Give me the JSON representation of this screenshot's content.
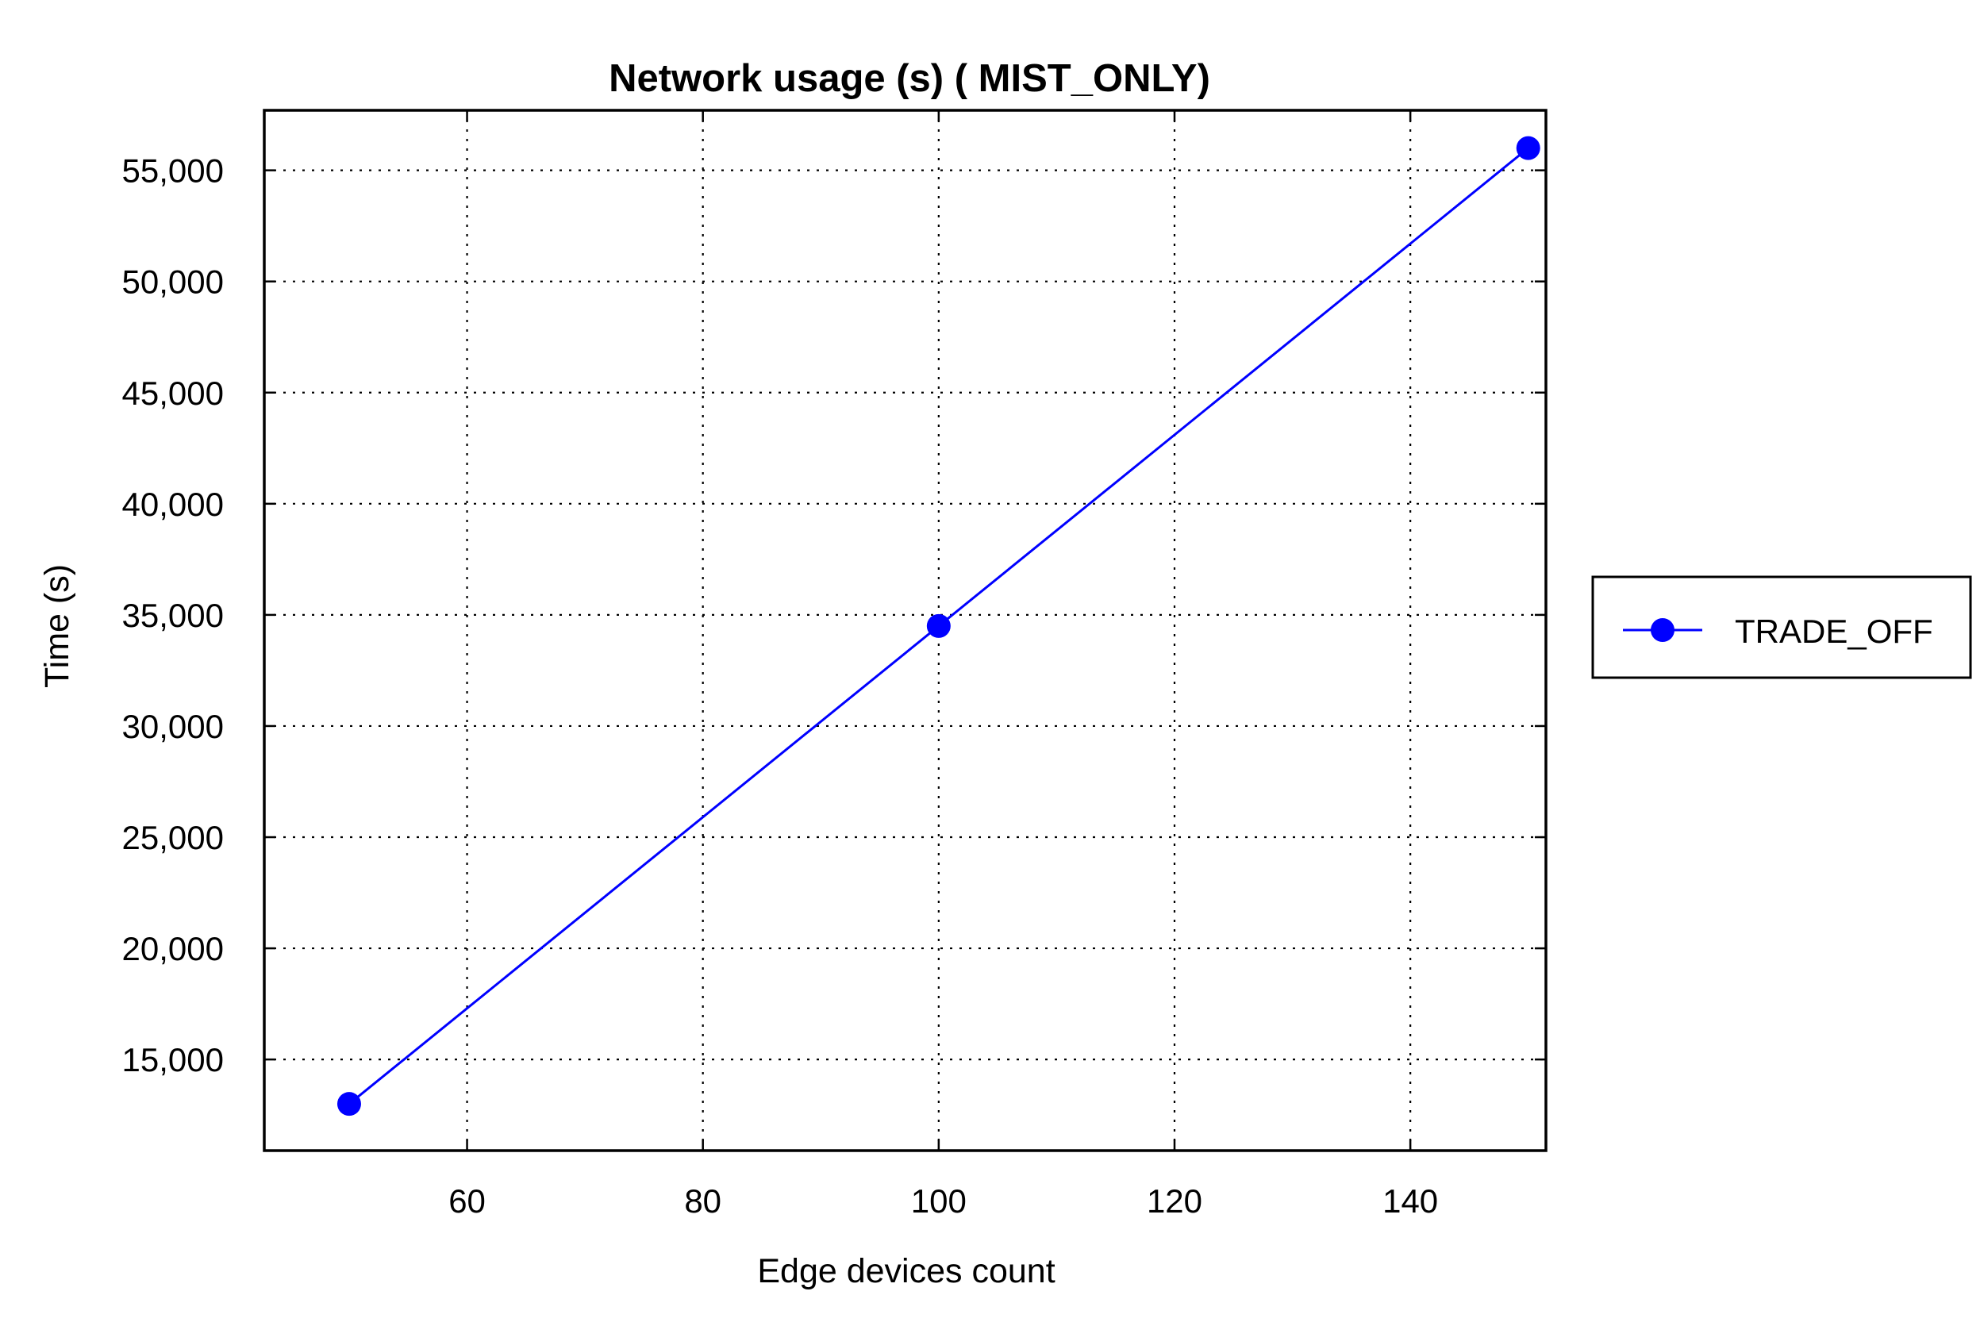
{
  "chart_data": {
    "type": "line",
    "title": "Network usage (s) ( MIST_ONLY)",
    "xlabel": "Edge devices count",
    "ylabel": "Time (s)",
    "xlim": [
      42.8,
      151.5
    ],
    "ylim": [
      10900,
      57700
    ],
    "x_ticks": [
      60,
      80,
      100,
      120,
      140
    ],
    "y_ticks": [
      15000,
      20000,
      25000,
      30000,
      35000,
      40000,
      45000,
      50000,
      55000
    ],
    "x_tick_labels": [
      "60",
      "80",
      "100",
      "120",
      "140"
    ],
    "y_tick_labels": [
      "15,000",
      "20,000",
      "25,000",
      "30,000",
      "35,000",
      "40,000",
      "45,000",
      "50,000",
      "55,000"
    ],
    "grid": true,
    "legend_position": "right",
    "series": [
      {
        "name": "TRADE_OFF",
        "color": "#0000ff",
        "marker": "circle",
        "x": [
          50,
          100,
          150
        ],
        "y": [
          13000,
          34500,
          56000
        ]
      }
    ]
  }
}
